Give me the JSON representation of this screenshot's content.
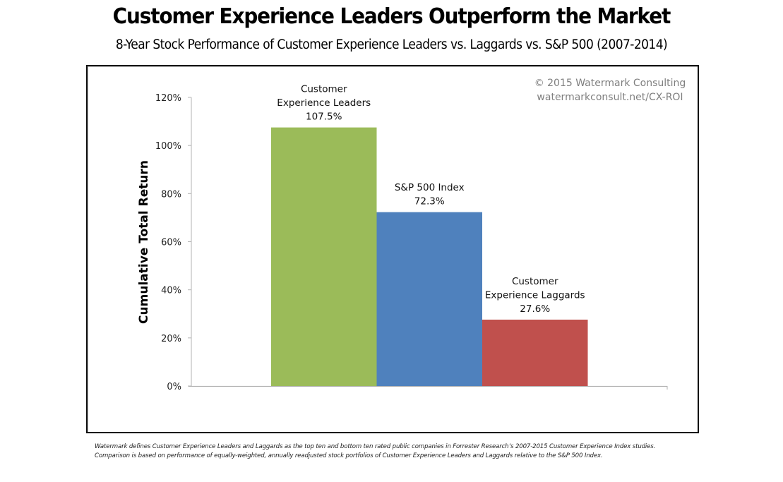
{
  "header": {
    "title": "Customer Experience Leaders Outperform the Market",
    "subtitle": "8-Year Stock Performance of Customer Experience Leaders vs. Laggards vs. S&P 500 (2007-2014)"
  },
  "copyright": {
    "line1": "© 2015 Watermark Consulting",
    "line2": "watermarkconsult.net/CX-ROI"
  },
  "footnote": {
    "line1": "Watermark defines Customer Experience Leaders and Laggards as the top ten and bottom ten rated public companies in Forrester Research’s 2007-2015 Customer Experience Index studies.",
    "line2": "Comparison is based on performance of equally-weighted, annually readjusted stock portfolios of Customer Experience Leaders and Laggards relative to the S&P 500 Index."
  },
  "chart_data": {
    "type": "bar",
    "title": "Customer Experience Leaders Outperform the Market",
    "subtitle": "8-Year Stock Performance of Customer Experience Leaders vs. Laggards vs. S&P 500 (2007-2014)",
    "xlabel": "",
    "ylabel": "Cumulative Total Return",
    "ylim": [
      0,
      120
    ],
    "yticks": [
      0,
      20,
      40,
      60,
      80,
      100,
      120
    ],
    "ytick_labels": [
      "0%",
      "20%",
      "40%",
      "60%",
      "80%",
      "100%",
      "120%"
    ],
    "grid": false,
    "legend": "none",
    "categories": [
      "Customer Experience Leaders",
      "S&P 500 Index",
      "Customer Experience Laggards"
    ],
    "values": [
      107.5,
      72.3,
      27.6
    ],
    "value_labels": [
      "107.5%",
      "72.3%",
      "27.6%"
    ],
    "label_lines": [
      [
        "Customer",
        "Experience Leaders",
        "107.5%"
      ],
      [
        "S&P 500 Index",
        "72.3%"
      ],
      [
        "Customer",
        "Experience Laggards",
        "27.6%"
      ]
    ],
    "colors": [
      "#9bbb59",
      "#4f81bd",
      "#c0504d"
    ]
  }
}
